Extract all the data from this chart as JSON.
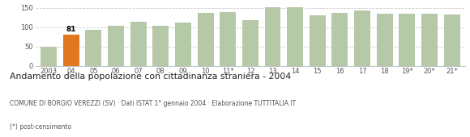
{
  "categories": [
    "2003",
    "04",
    "05",
    "06",
    "07",
    "08",
    "09",
    "10",
    "11*",
    "12",
    "13",
    "14",
    "15",
    "16",
    "17",
    "18",
    "19*",
    "20*",
    "21*"
  ],
  "values": [
    50,
    81,
    94,
    104,
    114,
    104,
    113,
    138,
    140,
    118,
    152,
    152,
    130,
    138,
    144,
    136,
    136,
    136,
    134
  ],
  "bar_colors_key": [
    "green",
    "orange",
    "green",
    "green",
    "green",
    "green",
    "green",
    "green",
    "green",
    "green",
    "green",
    "green",
    "green",
    "green",
    "green",
    "green",
    "green",
    "green",
    "green"
  ],
  "highlight_index": 1,
  "highlight_value": 81,
  "green_color": "#b5c9a8",
  "orange_color": "#e07820",
  "title": "Andamento della popolazione con cittadinanza straniera - 2004",
  "subtitle": "COMUNE DI BORGIO VEREZZI (SV) · Dati ISTAT 1° gennaio 2004 · Elaborazione TUTTITALIA.IT",
  "footnote": "(*) post-censimento",
  "ylim": [
    0,
    160
  ],
  "yticks": [
    0,
    50,
    100,
    150
  ],
  "background_color": "#ffffff",
  "grid_color": "#cccccc"
}
